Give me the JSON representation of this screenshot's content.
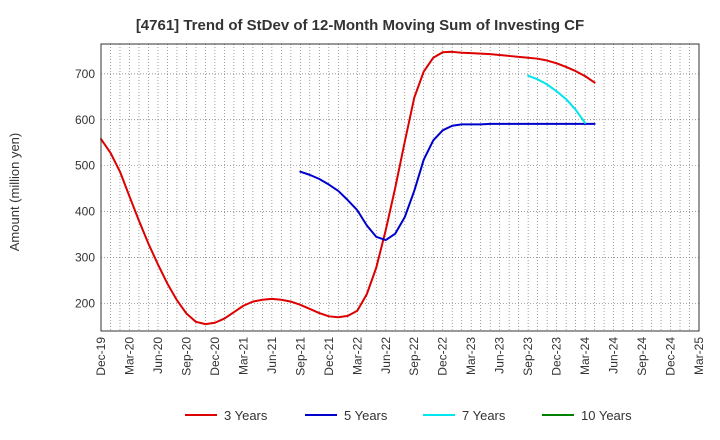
{
  "chart_data": {
    "type": "line",
    "title": "[4761]  Trend of StDev of 12-Month Moving Sum of Investing CF",
    "ylabel": "Amount (million yen)",
    "xlabel": "",
    "ylim": [
      140,
      765
    ],
    "yticks": [
      200,
      300,
      400,
      500,
      600,
      700
    ],
    "xticks": [
      "Dec-19",
      "Mar-20",
      "Jun-20",
      "Sep-20",
      "Dec-20",
      "Mar-21",
      "Jun-21",
      "Sep-21",
      "Dec-21",
      "Mar-22",
      "Jun-22",
      "Sep-22",
      "Dec-22",
      "Mar-23",
      "Jun-23",
      "Sep-23",
      "Dec-23",
      "Mar-24",
      "Jun-24",
      "Sep-24",
      "Dec-24",
      "Mar-25"
    ],
    "grid": true,
    "legend_position": "bottom",
    "series": [
      {
        "name": "3 Years",
        "color": "#dd0000",
        "start_month": 0,
        "values": [
          558,
          528,
          487,
          433,
          380,
          330,
          285,
          243,
          207,
          178,
          160,
          155,
          158,
          167,
          181,
          195,
          204,
          208,
          210,
          208,
          204,
          197,
          188,
          179,
          172,
          170,
          173,
          184,
          220,
          278,
          360,
          452,
          552,
          648,
          705,
          735,
          747,
          748,
          746,
          745,
          744,
          743,
          741,
          739,
          737,
          735,
          733,
          729,
          723,
          715,
          706,
          695,
          681
        ]
      },
      {
        "name": "5 Years",
        "color": "#0000cc",
        "start_month": 21,
        "values": [
          487,
          480,
          471,
          459,
          445,
          425,
          403,
          370,
          345,
          338,
          352,
          388,
          445,
          513,
          555,
          577,
          587,
          590,
          590,
          590,
          591,
          591,
          591,
          591,
          591,
          591,
          591,
          591,
          591,
          591,
          591,
          591
        ]
      },
      {
        "name": "7 Years",
        "color": "#00e5ee",
        "start_month": 45,
        "values": [
          696,
          688,
          677,
          662,
          645,
          622,
          593
        ]
      },
      {
        "name": "10 Years",
        "color": "#008000",
        "start_month": 0,
        "values": []
      }
    ]
  }
}
